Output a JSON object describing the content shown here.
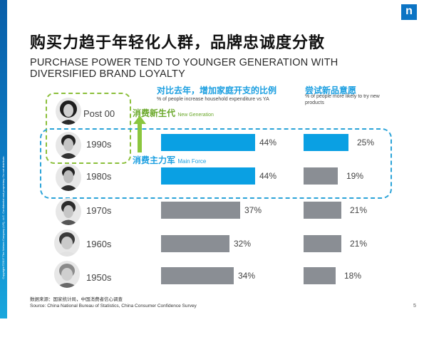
{
  "slide": {
    "title_cn": "购买力趋于年轻化人群，品牌忠诚度分散",
    "title_en": "PURCHASE POWER TEND TO YOUNGER  GENERATION  WITH DIVERSIFIED BRAND LOYALTY",
    "logo_letter": "n",
    "side_text": "Copyright ©2017 The Nielsen Company (US), LLC. Confidential and proprietary. Do not distribute.",
    "footer_line1": "数据来源：国家统计局，中国消费者信心调查",
    "footer_line2": "Source: China National Bureau of Statistics, China Consumer Confidence Survey",
    "page_number": "5",
    "ann_new_gen_cn": "消费新生代",
    "ann_new_gen_en": "New Generation",
    "ann_main_force_cn": "消费主力军",
    "ann_main_force_en": "Main Force"
  },
  "rows": [
    {
      "label": "Post 00"
    },
    {
      "label": "1990s"
    },
    {
      "label": "1980s"
    },
    {
      "label": "1970s"
    },
    {
      "label": "1960s"
    },
    {
      "label": "1950s"
    }
  ],
  "chart_data": [
    {
      "type": "bar",
      "title": "对比去年，增加家庭开支的比例",
      "subtitle": "% of people increase household expenditure vs YA",
      "categories": [
        "1990s",
        "1980s",
        "1970s",
        "1960s",
        "1950s"
      ],
      "values": [
        44,
        44,
        37,
        32,
        34
      ],
      "value_labels": [
        "44%",
        "44%",
        "37%",
        "32%",
        "34%"
      ],
      "highlight": [
        true,
        true,
        false,
        false,
        false
      ],
      "colors": {
        "highlight": "#0aa0e3",
        "normal": "#8a8e94"
      }
    },
    {
      "type": "bar",
      "title": "尝试新品意愿",
      "subtitle": "% of people more likely to try new products",
      "categories": [
        "1990s",
        "1980s",
        "1970s",
        "1960s",
        "1950s"
      ],
      "values": [
        25,
        19,
        21,
        21,
        18
      ],
      "value_labels": [
        "25%",
        "19%",
        "21%",
        "21%",
        "18%"
      ],
      "highlight": [
        true,
        false,
        false,
        false,
        false
      ],
      "colors": {
        "highlight": "#0aa0e3",
        "normal": "#8a8e94"
      }
    }
  ]
}
